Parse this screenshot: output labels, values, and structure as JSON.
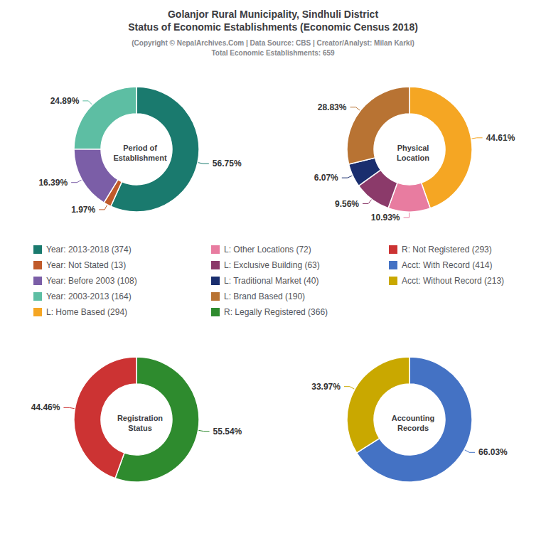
{
  "title": "Golanjor Rural Municipality, Sindhuli District\nStatus of Economic Establishments (Economic Census 2018)",
  "subtitle": "(Copyright © NepalArchives.Com | Data Source: CBS | Creator/Analyst: Milan Karki)\nTotal Economic Establishments: 659",
  "chart_data": [
    {
      "type": "pie",
      "title": "Period of\nEstablishment",
      "categories": [
        "Year: 2013-2018 (374)",
        "Year: Not Stated (13)",
        "Year: Before 2003 (108)",
        "Year: 2003-2013 (164)"
      ],
      "values": [
        56.75,
        1.97,
        16.39,
        24.89
      ],
      "value_labels": [
        "56.75%",
        "1.97%",
        "16.39%",
        "24.89%"
      ],
      "colors": [
        "#1a7a6e",
        "#c05a2a",
        "#7b5ea7",
        "#5dbea3"
      ],
      "data_labels": true,
      "legend": "center"
    },
    {
      "type": "pie",
      "title": "Physical\nLocation",
      "categories": [
        "L: Home Based (294)",
        "L: Other Locations (72)",
        "L: Exclusive Building (63)",
        "L: Traditional Market (40)",
        "L: Brand Based (190)"
      ],
      "values": [
        44.61,
        10.93,
        9.56,
        6.07,
        28.83
      ],
      "value_labels": [
        "44.61%",
        "10.93%",
        "9.56%",
        "6.07%",
        "28.83%"
      ],
      "colors": [
        "#f5a623",
        "#e87ca0",
        "#8b3a6a",
        "#1a2e6e",
        "#b87333"
      ],
      "data_labels": true,
      "legend": "center"
    },
    {
      "type": "pie",
      "title": "Registration\nStatus",
      "categories": [
        "R: Legally Registered (366)",
        "R: Not Registered (293)"
      ],
      "values": [
        55.54,
        44.46
      ],
      "value_labels": [
        "55.54%",
        "44.46%"
      ],
      "colors": [
        "#2e8b2e",
        "#cc3333"
      ],
      "data_labels": true,
      "legend": "center"
    },
    {
      "type": "pie",
      "title": "Accounting\nRecords",
      "categories": [
        "Acct: With Record (414)",
        "Acct: Without Record (213)"
      ],
      "values": [
        66.03,
        33.97
      ],
      "value_labels": [
        "66.03%",
        "33.97%"
      ],
      "colors": [
        "#4472c4",
        "#c9a800"
      ],
      "data_labels": true,
      "legend": "center"
    }
  ]
}
